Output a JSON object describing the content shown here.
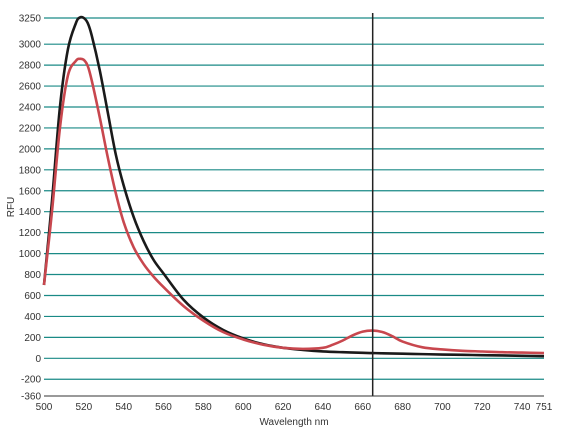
{
  "chart_data": {
    "type": "line",
    "xlabel": "Wavelength nm",
    "ylabel": "RFU",
    "xlim": [
      500,
      751
    ],
    "ylim": [
      -360,
      3250
    ],
    "x_ticks": [
      500,
      520,
      540,
      560,
      580,
      600,
      620,
      640,
      660,
      680,
      700,
      720,
      740,
      751
    ],
    "x_tick_labels": [
      "500",
      "520",
      "540",
      "560",
      "580",
      "600",
      "620",
      "640",
      "660",
      "680",
      "700",
      "720",
      "740",
      "751"
    ],
    "y_ticks": [
      -360,
      -200,
      0,
      200,
      400,
      600,
      800,
      1000,
      1200,
      1400,
      1600,
      1800,
      2000,
      2200,
      2400,
      2600,
      2800,
      3000,
      3250
    ],
    "y_tick_labels": [
      "-360",
      "-200",
      "0",
      "200",
      "400",
      "600",
      "800",
      "1000",
      "1200",
      "1400",
      "1600",
      "1800",
      "2000",
      "2200",
      "2400",
      "2600",
      "2800",
      "3000",
      "3250"
    ],
    "grid": true,
    "colors": {
      "grid": "#1a8a86",
      "axis": "#333333",
      "marker": "#222222"
    },
    "vertical_marker_x": 665,
    "series": [
      {
        "color": "#1a1a1a",
        "x": [
          500,
          504,
          508,
          512,
          516,
          518,
          520,
          522,
          524,
          528,
          532,
          536,
          540,
          545,
          550,
          555,
          560,
          570,
          580,
          590,
          600,
          610,
          620,
          630,
          640,
          650,
          660,
          665,
          670,
          680,
          690,
          700,
          710,
          720,
          730,
          740,
          751
        ],
        "y": [
          700,
          1500,
          2400,
          2950,
          3200,
          3255,
          3250,
          3200,
          3080,
          2750,
          2350,
          1950,
          1650,
          1350,
          1120,
          940,
          810,
          560,
          390,
          270,
          190,
          135,
          100,
          80,
          66,
          58,
          52,
          50,
          48,
          44,
          40,
          36,
          33,
          30,
          27,
          24,
          20
        ]
      },
      {
        "color": "#c8474e",
        "x": [
          500,
          504,
          508,
          512,
          516,
          518,
          520,
          522,
          524,
          528,
          532,
          536,
          540,
          545,
          550,
          555,
          560,
          570,
          580,
          590,
          600,
          610,
          620,
          630,
          640,
          645,
          650,
          655,
          660,
          665,
          670,
          675,
          680,
          690,
          700,
          710,
          720,
          730,
          740,
          751
        ],
        "y": [
          700,
          1400,
          2200,
          2700,
          2840,
          2860,
          2850,
          2790,
          2650,
          2300,
          1920,
          1580,
          1300,
          1060,
          900,
          780,
          680,
          500,
          360,
          250,
          180,
          130,
          100,
          90,
          100,
          130,
          170,
          220,
          255,
          265,
          250,
          210,
          160,
          105,
          85,
          72,
          65,
          58,
          55,
          50
        ]
      }
    ]
  }
}
